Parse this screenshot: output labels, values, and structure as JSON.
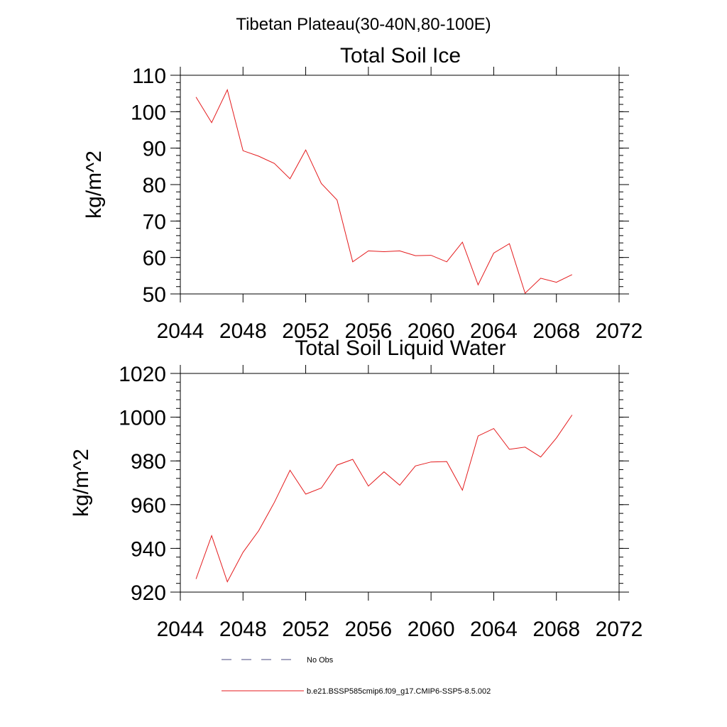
{
  "figure": {
    "title": "Tibetan Plateau(30-40N,80-100E)"
  },
  "legend": {
    "placement": "bottom",
    "items": [
      {
        "label": "No Obs",
        "style": "dashed",
        "color": "#4a4a80"
      },
      {
        "label": "b.e21.BSSP585cmip6.f09_g17.CMIP6-SSP5-8.5.002",
        "style": "solid",
        "color": "#e41a1c"
      }
    ]
  },
  "chart_data": [
    {
      "type": "line",
      "title": "Total Soil Ice",
      "xlabel": "",
      "ylabel": "kg/m^2",
      "xlim": [
        2044,
        2072
      ],
      "ylim": [
        50,
        110
      ],
      "xticks": [
        2044,
        2048,
        2052,
        2056,
        2060,
        2064,
        2068,
        2072
      ],
      "yticks": [
        50,
        60,
        70,
        80,
        90,
        100,
        110
      ],
      "grid": false,
      "x": [
        2045,
        2046,
        2047,
        2048,
        2049,
        2050,
        2051,
        2052,
        2053,
        2054,
        2055,
        2056,
        2057,
        2058,
        2059,
        2060,
        2061,
        2062,
        2063,
        2064,
        2065,
        2066,
        2067,
        2068,
        2069
      ],
      "series": [
        {
          "color": "#e41a1c",
          "values": [
            104,
            97,
            106,
            89.3,
            87.8,
            85.8,
            81.6,
            89.5,
            80.3,
            75.8,
            58.8,
            61.8,
            61.6,
            61.8,
            60.5,
            60.6,
            58.8,
            64.2,
            52.5,
            61.2,
            63.8,
            50.2,
            54.3,
            53.2,
            55.3
          ]
        }
      ]
    },
    {
      "type": "line",
      "title": "Total Soil Liquid Water",
      "xlabel": "",
      "ylabel": "kg/m^2",
      "xlim": [
        2044,
        2072
      ],
      "ylim": [
        920,
        1020
      ],
      "xticks": [
        2044,
        2048,
        2052,
        2056,
        2060,
        2064,
        2068,
        2072
      ],
      "yticks": [
        920,
        940,
        960,
        980,
        1000,
        1020
      ],
      "grid": false,
      "x": [
        2045,
        2046,
        2047,
        2048,
        2049,
        2050,
        2051,
        2052,
        2053,
        2054,
        2055,
        2056,
        2057,
        2058,
        2059,
        2060,
        2061,
        2062,
        2063,
        2064,
        2065,
        2066,
        2067,
        2068,
        2069
      ],
      "series": [
        {
          "color": "#e41a1c",
          "values": [
            926,
            945.8,
            924.7,
            938.2,
            948.1,
            961,
            975.7,
            964.8,
            967.6,
            978.1,
            980.7,
            968.5,
            975,
            968.9,
            977.7,
            979.5,
            979.7,
            966.6,
            991.4,
            994.8,
            985.3,
            986.3,
            981.8,
            990.5,
            1001
          ]
        }
      ]
    }
  ]
}
